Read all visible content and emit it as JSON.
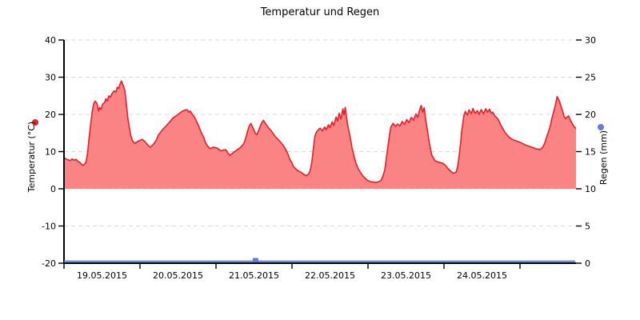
{
  "colors": {
    "temp_line": "#ee1c25",
    "temp_fill": "#fa8484",
    "rain": "#5b7ce0",
    "axis": "#000000",
    "grid": "#d8d8d8",
    "text": "#000000",
    "background": "#ffffff"
  },
  "chart_data": {
    "type": "area",
    "title": "Temperatur und Regen",
    "grid": true,
    "legend_position": "axis-labels",
    "x_axis": {
      "unit": "days since 19.05.2015 00:00",
      "days_total": 6.737,
      "day_labels": [
        "19.05.2015",
        "20.05.2015",
        "21.05.2015",
        "22.05.2015",
        "23.05.2015",
        "24.05.2015"
      ]
    },
    "y_left": {
      "label": "Temperatur (°C)",
      "min": -20,
      "max": 40,
      "ticks": [
        40,
        30,
        20,
        10,
        0,
        -10,
        -20
      ]
    },
    "y_right": {
      "label": "Regen (mm)",
      "min": 0,
      "max": 30,
      "ticks": [
        30,
        25,
        20,
        15,
        10,
        5,
        0
      ]
    },
    "series": [
      {
        "name": "Temperatur",
        "type": "area",
        "axis": "left",
        "fill_to": 0,
        "points": [
          [
            0,
            8.3
          ],
          [
            0.04,
            7.9
          ],
          [
            0.08,
            7.6
          ],
          [
            0.11,
            8.0
          ],
          [
            0.13,
            7.7
          ],
          [
            0.16,
            7.9
          ],
          [
            0.19,
            7.3
          ],
          [
            0.21,
            7.1
          ],
          [
            0.23,
            6.6
          ],
          [
            0.25,
            6.3
          ],
          [
            0.27,
            6.6
          ],
          [
            0.29,
            7.2
          ],
          [
            0.31,
            9.5
          ],
          [
            0.33,
            13.5
          ],
          [
            0.35,
            17.0
          ],
          [
            0.37,
            20.5
          ],
          [
            0.39,
            22.8
          ],
          [
            0.41,
            23.6
          ],
          [
            0.435,
            22.9
          ],
          [
            0.455,
            20.9
          ],
          [
            0.47,
            21.8
          ],
          [
            0.49,
            21.4
          ],
          [
            0.51,
            22.8
          ],
          [
            0.535,
            23.2
          ],
          [
            0.55,
            24.2
          ],
          [
            0.57,
            23.6
          ],
          [
            0.59,
            25.0
          ],
          [
            0.61,
            24.6
          ],
          [
            0.635,
            25.7
          ],
          [
            0.66,
            26.3
          ],
          [
            0.685,
            26.0
          ],
          [
            0.7,
            27.3
          ],
          [
            0.72,
            27.0
          ],
          [
            0.74,
            28.3
          ],
          [
            0.755,
            29.0
          ],
          [
            0.77,
            28.3
          ],
          [
            0.8,
            26.5
          ],
          [
            0.82,
            23.0
          ],
          [
            0.84,
            19.0
          ],
          [
            0.86,
            16.5
          ],
          [
            0.88,
            14.2
          ],
          [
            0.9,
            13.0
          ],
          [
            0.92,
            12.4
          ],
          [
            0.94,
            12.2
          ],
          [
            0.96,
            12.6
          ],
          [
            0.99,
            12.9
          ],
          [
            1.03,
            13.3
          ],
          [
            1.06,
            12.8
          ],
          [
            1.08,
            12.3
          ],
          [
            1.11,
            11.6
          ],
          [
            1.14,
            11.2
          ],
          [
            1.17,
            11.8
          ],
          [
            1.19,
            12.3
          ],
          [
            1.22,
            13.3
          ],
          [
            1.24,
            14.4
          ],
          [
            1.3,
            16.0
          ],
          [
            1.34,
            16.8
          ],
          [
            1.37,
            17.5
          ],
          [
            1.4,
            18.2
          ],
          [
            1.43,
            19.0
          ],
          [
            1.46,
            19.4
          ],
          [
            1.49,
            19.8
          ],
          [
            1.52,
            20.3
          ],
          [
            1.56,
            20.9
          ],
          [
            1.59,
            21.1
          ],
          [
            1.62,
            21.3
          ],
          [
            1.64,
            20.6
          ],
          [
            1.66,
            20.9
          ],
          [
            1.69,
            20.0
          ],
          [
            1.71,
            19.5
          ],
          [
            1.74,
            18.3
          ],
          [
            1.77,
            17.0
          ],
          [
            1.81,
            15.0
          ],
          [
            1.84,
            13.8
          ],
          [
            1.86,
            12.5
          ],
          [
            1.89,
            11.5
          ],
          [
            1.92,
            10.8
          ],
          [
            1.95,
            11.0
          ],
          [
            1.97,
            11.2
          ],
          [
            2.0,
            11.0
          ],
          [
            2.02,
            10.9
          ],
          [
            2.05,
            10.4
          ],
          [
            2.07,
            10.2
          ],
          [
            2.1,
            10.4
          ],
          [
            2.13,
            10.5
          ],
          [
            2.16,
            9.6
          ],
          [
            2.18,
            9.0
          ],
          [
            2.21,
            9.4
          ],
          [
            2.23,
            9.8
          ],
          [
            2.26,
            10.2
          ],
          [
            2.28,
            10.5
          ],
          [
            2.31,
            10.9
          ],
          [
            2.34,
            11.5
          ],
          [
            2.37,
            12.3
          ],
          [
            2.39,
            13.5
          ],
          [
            2.42,
            15.8
          ],
          [
            2.44,
            17.0
          ],
          [
            2.46,
            17.6
          ],
          [
            2.48,
            16.6
          ],
          [
            2.5,
            15.8
          ],
          [
            2.52,
            14.8
          ],
          [
            2.54,
            14.6
          ],
          [
            2.565,
            15.9
          ],
          [
            2.59,
            17.2
          ],
          [
            2.61,
            18.0
          ],
          [
            2.625,
            18.4
          ],
          [
            2.65,
            17.6
          ],
          [
            2.67,
            17.0
          ],
          [
            2.7,
            16.2
          ],
          [
            2.73,
            15.5
          ],
          [
            2.76,
            14.6
          ],
          [
            2.79,
            13.8
          ],
          [
            2.82,
            13.2
          ],
          [
            2.85,
            12.5
          ],
          [
            2.88,
            11.8
          ],
          [
            2.92,
            10.5
          ],
          [
            2.95,
            9.2
          ],
          [
            2.97,
            8.0
          ],
          [
            3.0,
            6.9
          ],
          [
            3.02,
            6.0
          ],
          [
            3.05,
            5.4
          ],
          [
            3.07,
            5.0
          ],
          [
            3.1,
            4.6
          ],
          [
            3.13,
            4.3
          ],
          [
            3.16,
            3.8
          ],
          [
            3.19,
            3.5
          ],
          [
            3.22,
            4.0
          ],
          [
            3.24,
            5.0
          ],
          [
            3.26,
            7.0
          ],
          [
            3.28,
            10.5
          ],
          [
            3.3,
            14.0
          ],
          [
            3.32,
            15.2
          ],
          [
            3.34,
            15.7
          ],
          [
            3.37,
            16.3
          ],
          [
            3.4,
            15.6
          ],
          [
            3.43,
            16.6
          ],
          [
            3.45,
            15.9
          ],
          [
            3.48,
            17.2
          ],
          [
            3.5,
            16.4
          ],
          [
            3.53,
            18.0
          ],
          [
            3.55,
            17.0
          ],
          [
            3.58,
            19.3
          ],
          [
            3.6,
            18.2
          ],
          [
            3.62,
            20.3
          ],
          [
            3.645,
            18.8
          ],
          [
            3.67,
            21.5
          ],
          [
            3.685,
            19.9
          ],
          [
            3.7,
            21.9
          ],
          [
            3.72,
            19.0
          ],
          [
            3.73,
            17.5
          ],
          [
            3.75,
            15.5
          ],
          [
            3.77,
            13.5
          ],
          [
            3.79,
            11.0
          ],
          [
            3.82,
            8.5
          ],
          [
            3.84,
            7.0
          ],
          [
            3.87,
            5.5
          ],
          [
            3.9,
            4.4
          ],
          [
            3.93,
            3.5
          ],
          [
            3.96,
            2.9
          ],
          [
            3.98,
            2.5
          ],
          [
            4.01,
            2.1
          ],
          [
            4.04,
            1.9
          ],
          [
            4.07,
            1.8
          ],
          [
            4.1,
            1.7
          ],
          [
            4.13,
            1.8
          ],
          [
            4.17,
            2.2
          ],
          [
            4.19,
            3.0
          ],
          [
            4.22,
            5.0
          ],
          [
            4.24,
            8.0
          ],
          [
            4.26,
            11.0
          ],
          [
            4.28,
            14.0
          ],
          [
            4.3,
            16.5
          ],
          [
            4.33,
            17.6
          ],
          [
            4.36,
            16.8
          ],
          [
            4.39,
            17.4
          ],
          [
            4.42,
            16.9
          ],
          [
            4.45,
            18.1
          ],
          [
            4.48,
            17.3
          ],
          [
            4.51,
            18.6
          ],
          [
            4.54,
            17.8
          ],
          [
            4.57,
            19.2
          ],
          [
            4.6,
            18.4
          ],
          [
            4.63,
            20.1
          ],
          [
            4.655,
            19.2
          ],
          [
            4.68,
            21.2
          ],
          [
            4.7,
            22.4
          ],
          [
            4.72,
            20.6
          ],
          [
            4.74,
            21.8
          ],
          [
            4.76,
            18.5
          ],
          [
            4.78,
            16.0
          ],
          [
            4.81,
            12.0
          ],
          [
            4.84,
            9.0
          ],
          [
            4.88,
            7.6
          ],
          [
            4.91,
            7.3
          ],
          [
            4.93,
            7.2
          ],
          [
            4.96,
            7.0
          ],
          [
            4.99,
            6.8
          ],
          [
            5.02,
            6.3
          ],
          [
            5.05,
            5.5
          ],
          [
            5.08,
            4.9
          ],
          [
            5.12,
            4.2
          ],
          [
            5.14,
            4.3
          ],
          [
            5.16,
            4.5
          ],
          [
            5.18,
            6.0
          ],
          [
            5.2,
            9.0
          ],
          [
            5.22,
            12.5
          ],
          [
            5.23,
            15.0
          ],
          [
            5.25,
            17.8
          ],
          [
            5.26,
            19.5
          ],
          [
            5.28,
            20.8
          ],
          [
            5.31,
            19.8
          ],
          [
            5.33,
            21.2
          ],
          [
            5.36,
            20.2
          ],
          [
            5.38,
            21.6
          ],
          [
            5.41,
            20.3
          ],
          [
            5.44,
            21.0
          ],
          [
            5.46,
            20.0
          ],
          [
            5.49,
            21.3
          ],
          [
            5.52,
            20.2
          ],
          [
            5.55,
            21.5
          ],
          [
            5.575,
            20.6
          ],
          [
            5.6,
            21.4
          ],
          [
            5.62,
            20.4
          ],
          [
            5.64,
            20.6
          ],
          [
            5.67,
            19.6
          ],
          [
            5.7,
            19.0
          ],
          [
            5.73,
            18.0
          ],
          [
            5.75,
            17.0
          ],
          [
            5.78,
            16.0
          ],
          [
            5.8,
            15.2
          ],
          [
            5.83,
            14.5
          ],
          [
            5.86,
            13.8
          ],
          [
            5.9,
            13.3
          ],
          [
            5.93,
            13.0
          ],
          [
            5.97,
            12.7
          ],
          [
            6.0,
            12.5
          ],
          [
            6.04,
            12.1
          ],
          [
            6.07,
            11.8
          ],
          [
            6.11,
            11.5
          ],
          [
            6.15,
            11.2
          ],
          [
            6.18,
            11.0
          ],
          [
            6.22,
            10.7
          ],
          [
            6.25,
            10.6
          ],
          [
            6.27,
            10.6
          ],
          [
            6.3,
            11.2
          ],
          [
            6.32,
            12.0
          ],
          [
            6.35,
            13.8
          ],
          [
            6.37,
            15.0
          ],
          [
            6.4,
            17.0
          ],
          [
            6.42,
            19.0
          ],
          [
            6.44,
            20.5
          ],
          [
            6.46,
            22.0
          ],
          [
            6.475,
            23.4
          ],
          [
            6.49,
            24.8
          ],
          [
            6.51,
            24.0
          ],
          [
            6.52,
            23.5
          ],
          [
            6.545,
            21.8
          ],
          [
            6.56,
            21.0
          ],
          [
            6.58,
            19.4
          ],
          [
            6.6,
            18.9
          ],
          [
            6.62,
            19.3
          ],
          [
            6.64,
            19.6
          ],
          [
            6.66,
            18.6
          ],
          [
            6.68,
            17.8
          ],
          [
            6.71,
            16.8
          ],
          [
            6.737,
            16.2
          ]
        ]
      },
      {
        "name": "Regen",
        "type": "bar",
        "axis": "right",
        "baseline_line_at": 0,
        "bar_width_days": 0.074,
        "points": [
          [
            2.52,
            0.7
          ]
        ]
      }
    ]
  }
}
